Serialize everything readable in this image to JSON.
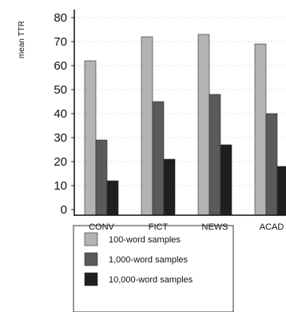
{
  "chart_data": {
    "type": "bar",
    "title": "",
    "xlabel": "",
    "ylabel": "mean TTR",
    "categories": [
      "CONV",
      "FICT",
      "NEWS",
      "ACAD"
    ],
    "ylim": [
      0,
      80
    ],
    "yticks": [
      0,
      10,
      20,
      30,
      40,
      50,
      60,
      70,
      80
    ],
    "grid": true,
    "legend_position": "bottom",
    "series": [
      {
        "name": "100-word samples",
        "values": [
          62,
          72,
          73,
          69
        ],
        "color": "#b3b3b3"
      },
      {
        "name": "1,000-word samples",
        "values": [
          29,
          45,
          48,
          40
        ],
        "color": "#5a5a5a"
      },
      {
        "name": "10,000-word samples",
        "values": [
          12,
          21,
          27,
          18
        ],
        "color": "#1f1f1f"
      }
    ]
  }
}
